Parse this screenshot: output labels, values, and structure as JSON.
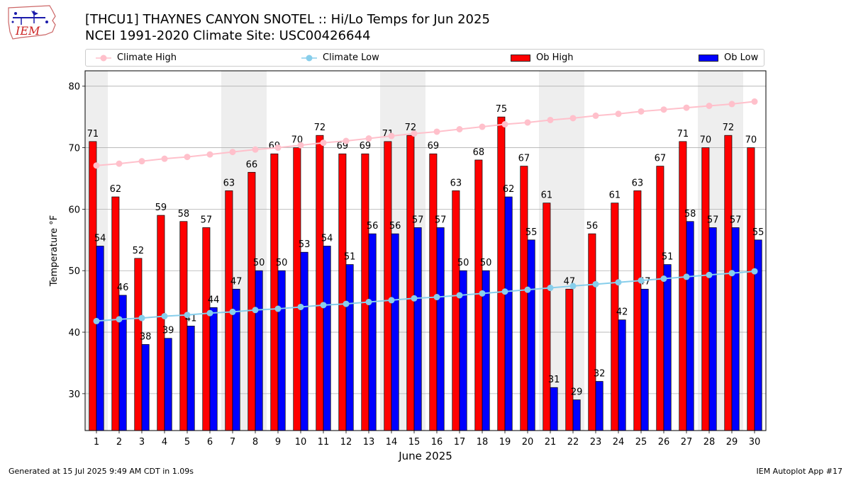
{
  "header": {
    "title_line1": "[THCU1] THAYNES CANYON SNOTEL :: Hi/Lo Temps for Jun 2025",
    "title_line2": "NCEI 1991-2020 Climate Site: USC00426644",
    "logo_text": "IEM"
  },
  "footer": {
    "left": "Generated at 15 Jul 2025 9:49 AM CDT in 1.09s",
    "right": "IEM Autoplot App #17"
  },
  "legend": [
    {
      "name": "Climate High",
      "color": "#ffc0cb",
      "kind": "line"
    },
    {
      "name": "Climate Low",
      "color": "#87ceeb",
      "kind": "line"
    },
    {
      "name": "Ob High",
      "color": "#ff0000",
      "kind": "bar"
    },
    {
      "name": "Ob Low",
      "color": "#0000ff",
      "kind": "bar"
    }
  ],
  "chart_data": {
    "type": "bar",
    "xlabel": "June 2025",
    "ylabel": "Temperature °F",
    "ylim": [
      24,
      82.5
    ],
    "yticks": [
      30,
      40,
      50,
      60,
      70,
      80
    ],
    "grid": true,
    "legend_position": "top",
    "shaded_weekend_days": [
      1,
      7,
      8,
      14,
      15,
      21,
      22,
      28,
      29
    ],
    "categories": [
      "1",
      "2",
      "3",
      "4",
      "5",
      "6",
      "7",
      "8",
      "9",
      "10",
      "11",
      "12",
      "13",
      "14",
      "15",
      "16",
      "17",
      "18",
      "19",
      "20",
      "21",
      "22",
      "23",
      "24",
      "25",
      "26",
      "27",
      "28",
      "29",
      "30"
    ],
    "series": [
      {
        "name": "Ob High",
        "type": "bar",
        "color": "#ff0000",
        "values": [
          71,
          62,
          52,
          59,
          58,
          57,
          63,
          66,
          69,
          70,
          72,
          69,
          69,
          71,
          72,
          69,
          63,
          68,
          75,
          67,
          61,
          47,
          56,
          61,
          63,
          67,
          71,
          70,
          72,
          70
        ]
      },
      {
        "name": "Ob Low",
        "type": "bar",
        "color": "#0000ff",
        "values": [
          54,
          46,
          38,
          39,
          41,
          44,
          47,
          50,
          50,
          53,
          54,
          51,
          56,
          56,
          57,
          57,
          50,
          50,
          62,
          55,
          31,
          29,
          32,
          42,
          47,
          51,
          58,
          57,
          57,
          55
        ]
      },
      {
        "name": "Climate High",
        "type": "line",
        "color": "#ffc0cb",
        "values": [
          67.1,
          67.4,
          67.8,
          68.2,
          68.5,
          68.9,
          69.3,
          69.7,
          70.0,
          70.4,
          70.8,
          71.1,
          71.5,
          71.9,
          72.3,
          72.6,
          73.0,
          73.4,
          73.8,
          74.1,
          74.5,
          74.8,
          75.2,
          75.5,
          75.9,
          76.2,
          76.5,
          76.8,
          77.1,
          77.5
        ]
      },
      {
        "name": "Climate Low",
        "type": "line",
        "color": "#87ceeb",
        "values": [
          41.8,
          42.1,
          42.3,
          42.6,
          42.8,
          43.1,
          43.3,
          43.6,
          43.8,
          44.1,
          44.4,
          44.6,
          44.9,
          45.2,
          45.5,
          45.7,
          46.0,
          46.3,
          46.6,
          46.9,
          47.2,
          47.5,
          47.8,
          48.1,
          48.4,
          48.7,
          49.0,
          49.3,
          49.6,
          49.9
        ]
      }
    ]
  }
}
